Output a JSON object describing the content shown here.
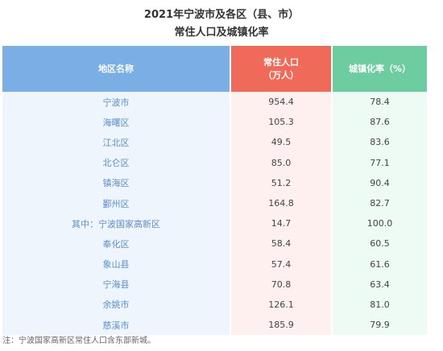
{
  "title_line1": "2021年宁波市及各区（县、市）",
  "title_line2": "常住人口及城镇化率",
  "headers": {
    "region": "地区名称",
    "population_line1": "常住人口",
    "population_line2": "（万人）",
    "urbanization": "城镇化率（%）"
  },
  "rows": [
    {
      "region": "宁波市",
      "population": "954.4",
      "urbanization": "78.4"
    },
    {
      "region": "海曙区",
      "population": "105.3",
      "urbanization": "87.6"
    },
    {
      "region": "江北区",
      "population": "49.5",
      "urbanization": "83.6"
    },
    {
      "region": "北仑区",
      "population": "85.0",
      "urbanization": "77.1"
    },
    {
      "region": "镇海区",
      "population": "51.2",
      "urbanization": "90.4"
    },
    {
      "region": "鄞州区",
      "population": "164.8",
      "urbanization": "82.7"
    },
    {
      "region": "其中：宁波国家高新区",
      "population": "14.7",
      "urbanization": "100.0"
    },
    {
      "region": "奉化区",
      "population": "58.4",
      "urbanization": "60.5"
    },
    {
      "region": "象山县",
      "population": "57.4",
      "urbanization": "61.6"
    },
    {
      "region": "宁海县",
      "population": "70.8",
      "urbanization": "63.4"
    },
    {
      "region": "余姚市",
      "population": "126.1",
      "urbanization": "81.0"
    },
    {
      "region": "慈溪市",
      "population": "185.9",
      "urbanization": "79.9"
    }
  ],
  "footnote": "注：宁波国家高新区常住人口含东部新城。",
  "colors": {
    "header_region": "#7aaee4",
    "header_population": "#f06a5a",
    "header_urbanization": "#6ecda0"
  }
}
